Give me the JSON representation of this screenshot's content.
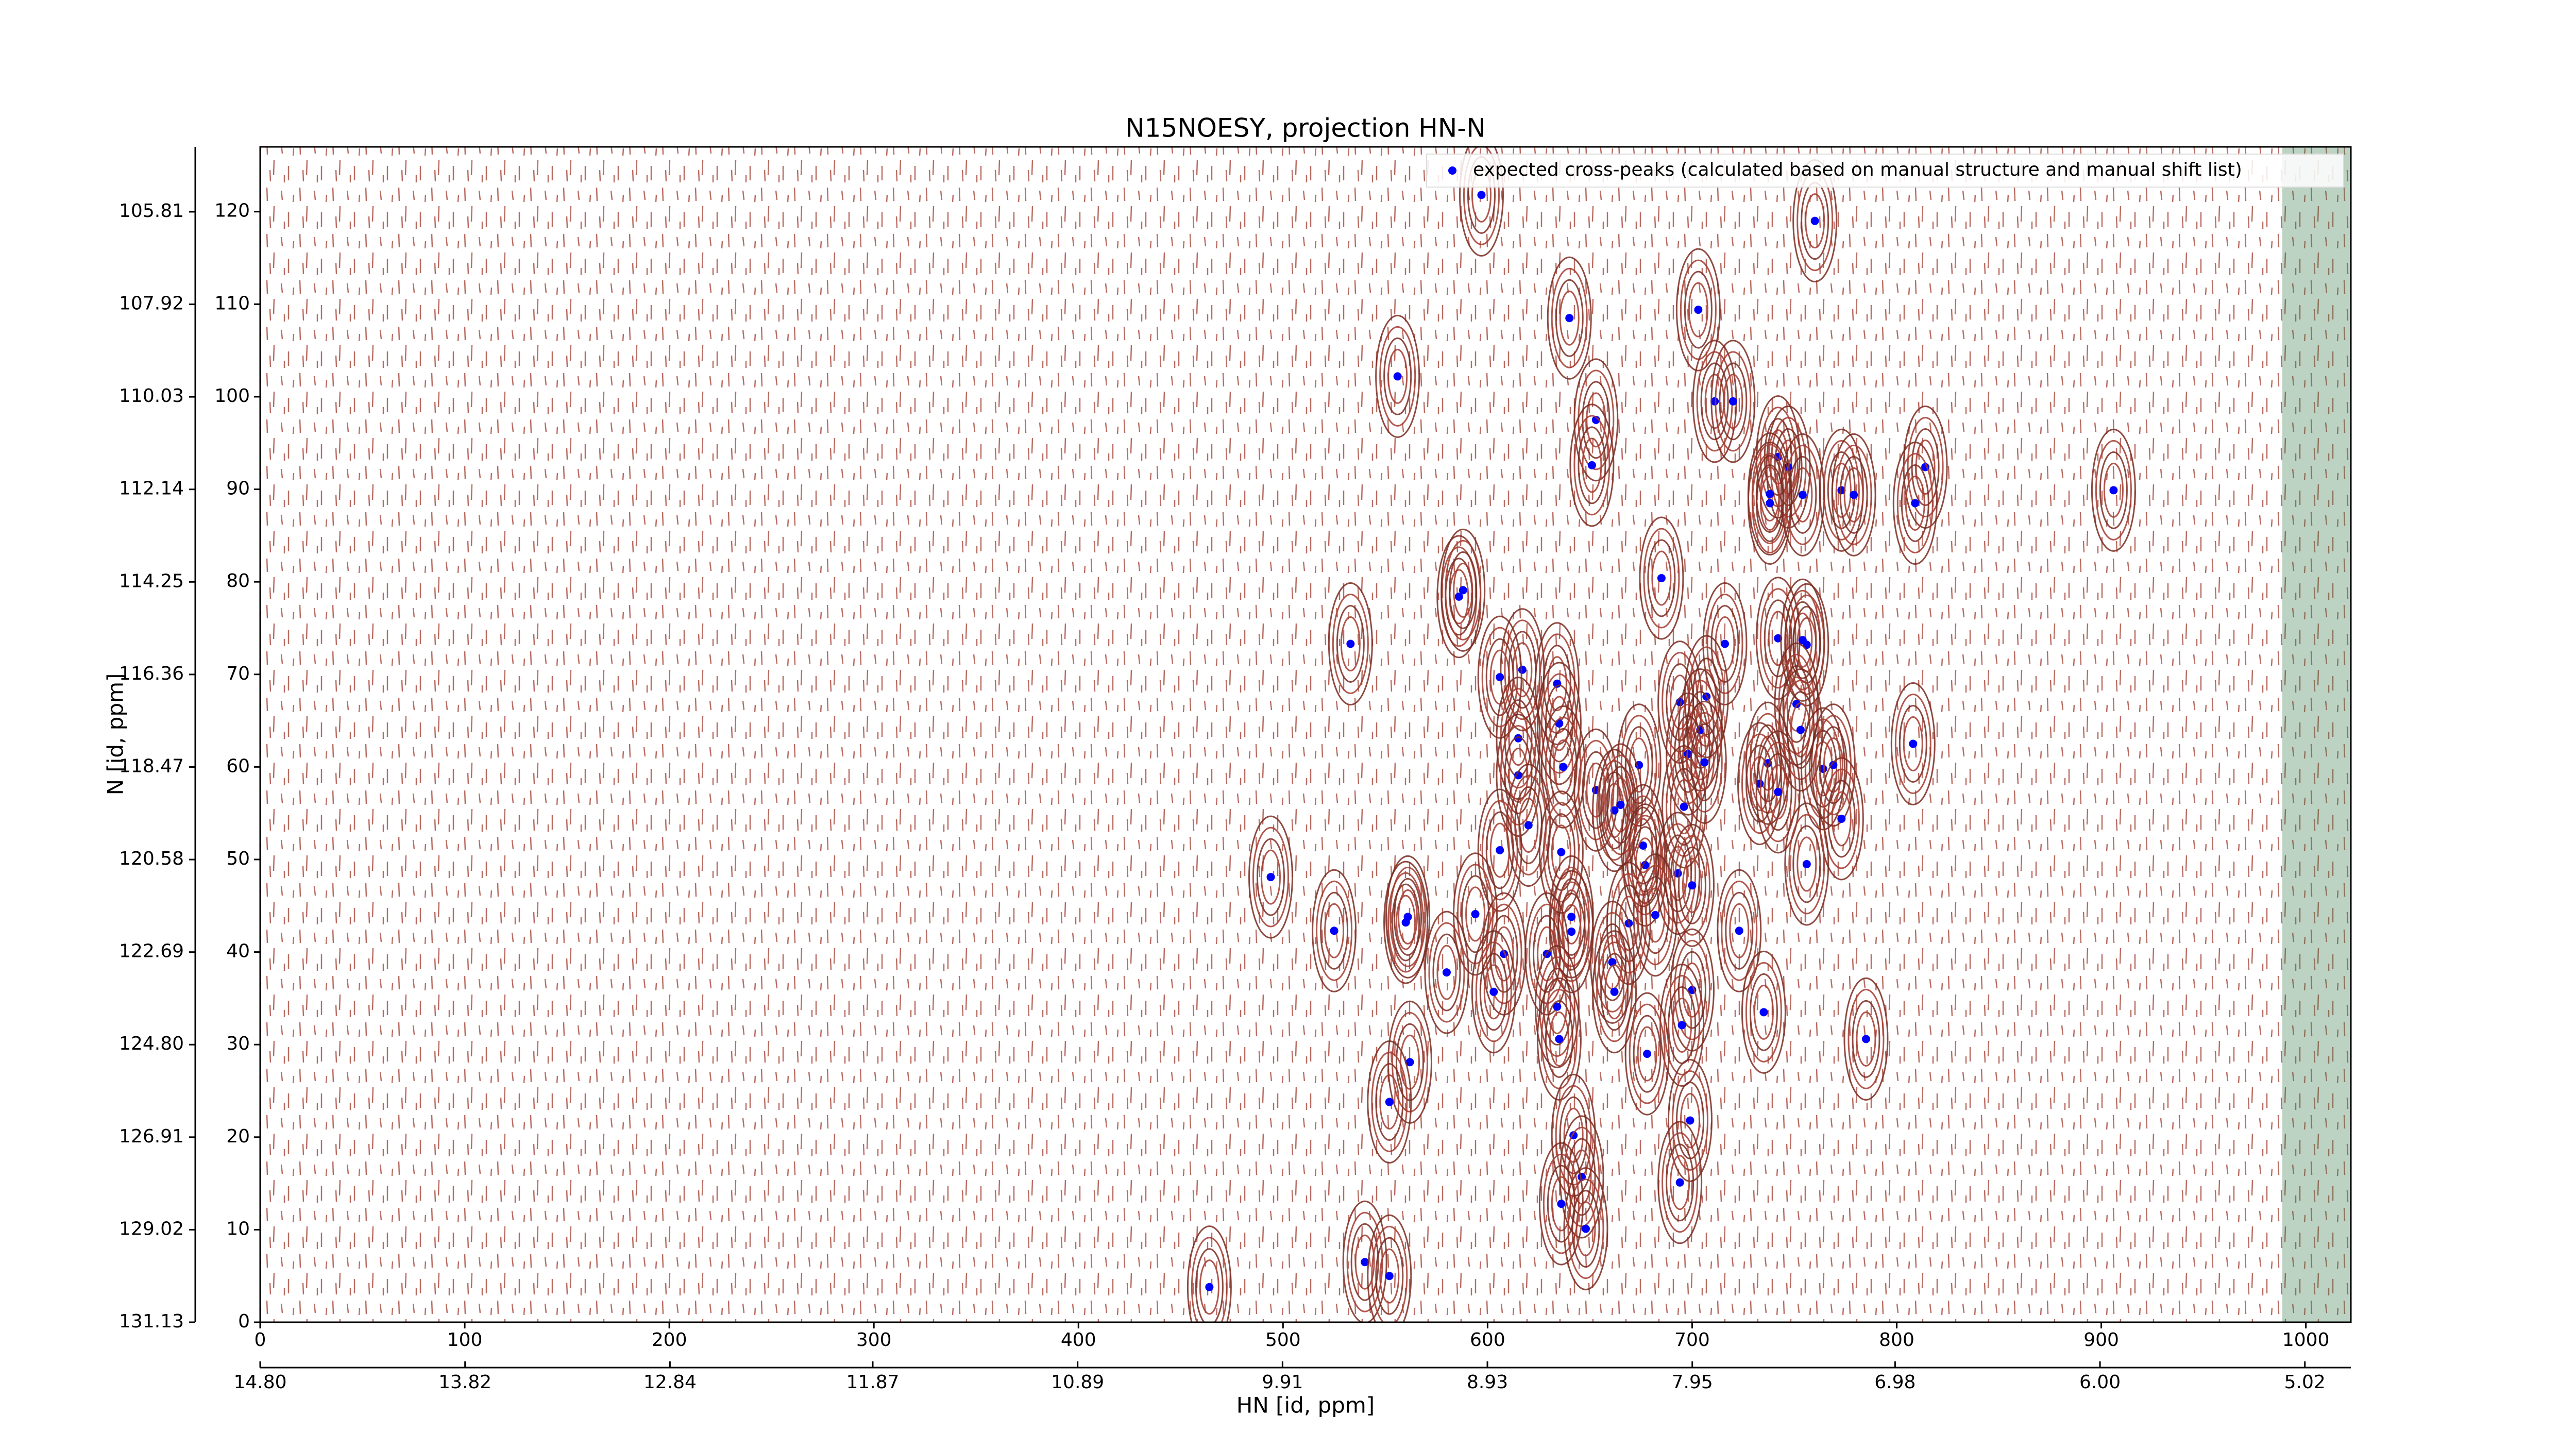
{
  "chart_data": {
    "type": "scatter",
    "title": "N15NOESY, projection HN-N",
    "xlabel": "HN [id, ppm]",
    "ylabel": "N [id, ppm]",
    "xlim": [
      0,
      1022
    ],
    "xticks": [
      0,
      100,
      200,
      300,
      400,
      500,
      600,
      700,
      800,
      900,
      1000
    ],
    "x2lim": [
      14.8,
      4.8
    ],
    "x2ticks": [
      {
        "value": 14.8,
        "label": "14.80"
      },
      {
        "value": 13.82,
        "label": "13.82"
      },
      {
        "value": 12.84,
        "label": "12.84"
      },
      {
        "value": 11.87,
        "label": "11.87"
      },
      {
        "value": 10.89,
        "label": "10.89"
      },
      {
        "value": 9.91,
        "label": "9.91"
      },
      {
        "value": 8.93,
        "label": "8.93"
      },
      {
        "value": 7.95,
        "label": "7.95"
      },
      {
        "value": 6.98,
        "label": "6.98"
      },
      {
        "value": 6,
        "label": "6.00"
      },
      {
        "value": 5.02,
        "label": "5.02"
      }
    ],
    "ylim": [
      0,
      127
    ],
    "yticks": [
      0,
      10,
      20,
      30,
      40,
      50,
      60,
      70,
      80,
      90,
      100,
      110,
      120
    ],
    "y2lim": [
      131.13,
      104.33
    ],
    "y2ticks": [
      131.13,
      129.02,
      126.91,
      {
        "value": 124.8,
        "label": "124.80"
      },
      122.69,
      120.58,
      118.47,
      116.36,
      114.25,
      112.14,
      110.03,
      107.92,
      105.81
    ],
    "legend": "upper right",
    "series": [
      {
        "name": "expected cross-peaks (calculated based on manual structure and manual shift list)",
        "color": "#0000ff",
        "x": [
          597,
          760,
          640,
          703,
          556,
          711,
          720,
          653,
          651,
          742,
          747,
          738,
          738,
          754,
          773,
          779,
          814,
          809,
          906,
          586,
          588,
          685,
          533,
          716,
          742,
          754,
          756,
          617,
          606,
          634,
          694,
          707,
          751,
          635,
          704,
          753,
          615,
          698,
          808,
          637,
          674,
          737,
          764,
          769,
          615,
          653,
          706,
          733,
          742,
          662,
          665,
          696,
          620,
          773,
          606,
          636,
          676,
          677,
          756,
          494,
          693,
          700,
          641,
          594,
          561,
          560,
          682,
          669,
          525,
          641,
          723,
          608,
          629,
          661,
          580,
          603,
          662,
          700,
          634,
          735,
          695,
          635,
          785,
          678,
          562,
          552,
          699,
          642,
          646,
          694,
          636,
          648,
          540,
          552,
          464
        ],
        "y": [
          121.8,
          119,
          108.5,
          109.4,
          102.2,
          99.5,
          99.5,
          97.5,
          92.6,
          93.5,
          92.4,
          89.5,
          88.5,
          89.4,
          89.9,
          89.4,
          92.4,
          88.5,
          89.9,
          78.4,
          79.1,
          80.4,
          73.3,
          73.3,
          73.9,
          73.7,
          73.2,
          70.5,
          69.7,
          69,
          67,
          67.6,
          66.8,
          64.7,
          64,
          64,
          63.1,
          61.4,
          62.5,
          60,
          60.2,
          60.4,
          59.8,
          60.2,
          59.1,
          57.5,
          60.5,
          58.2,
          57.3,
          55.3,
          55.9,
          55.7,
          53.7,
          54.4,
          51,
          50.8,
          51.5,
          49.4,
          49.5,
          48.1,
          48.5,
          47.2,
          43.8,
          44.1,
          43.8,
          43.2,
          44,
          43.1,
          42.3,
          42.2,
          42.3,
          39.8,
          39.8,
          38.9,
          37.8,
          35.7,
          35.7,
          35.9,
          34.1,
          33.5,
          32.1,
          30.6,
          30.6,
          29,
          28.1,
          23.8,
          21.8,
          20.2,
          15.7,
          15.1,
          12.8,
          10.1,
          6.5,
          5,
          3.8
        ]
      }
    ]
  }
}
